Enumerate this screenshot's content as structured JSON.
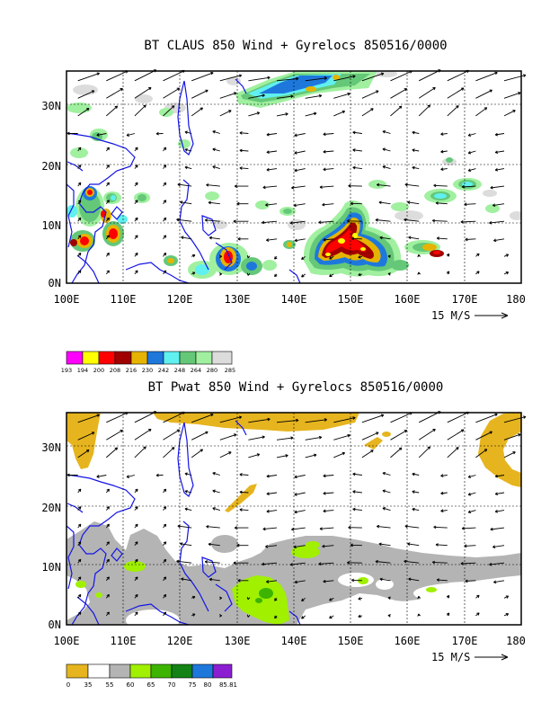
{
  "chart_data": [
    {
      "type": "heatmap",
      "title": "BT CLAUS 850 Wind + Gyrelocs 850516/0000",
      "variable": "cloud brightness temperature (shaded) + 850 wind vectors",
      "x_ticks": [
        "100E",
        "110E",
        "120E",
        "130E",
        "140E",
        "150E",
        "160E",
        "170E",
        "180"
      ],
      "y_ticks": [
        "0N",
        "10N",
        "20N",
        "30N"
      ],
      "x_range_deg_e": [
        100,
        180
      ],
      "y_range_deg_n": [
        0,
        35
      ],
      "grid": "dashed at 10-degree lines",
      "vector_reference": "15 M/S",
      "colorbar": {
        "labels": [
          "193",
          "194",
          "200",
          "208",
          "216",
          "230",
          "242",
          "248",
          "264",
          "280",
          "285"
        ],
        "colors": [
          "#ff00ff",
          "#ffff00",
          "#ff0000",
          "#a00000",
          "#e6b400",
          "#1e78dc",
          "#60f0f0",
          "#64c878",
          "#a0f0a0",
          "#dcdcdc"
        ]
      },
      "features": [
        {
          "name": "equatorial convective cluster near 147-158E",
          "lon_range": [
            143,
            158
          ],
          "lat_range": [
            1,
            13
          ],
          "min_value": 193
        },
        {
          "name": "convection near 127-130E",
          "lon_range": [
            125,
            132
          ],
          "lat_range": [
            1,
            6
          ],
          "min_value": 200
        },
        {
          "name": "Indochina convection",
          "lon_range": [
            102,
            112
          ],
          "lat_range": [
            4,
            16
          ],
          "min_value": 200
        },
        {
          "name": "northern cloud band",
          "lon_range": [
            130,
            152
          ],
          "lat_range": [
            30,
            35
          ],
          "min_value": 216
        }
      ]
    },
    {
      "type": "heatmap",
      "title": "BT Pwat 850 Wind + Gyrelocs 850516/0000",
      "variable": "precipitable water (shaded) + 850 wind vectors",
      "x_ticks": [
        "100E",
        "110E",
        "120E",
        "130E",
        "140E",
        "150E",
        "160E",
        "170E",
        "180"
      ],
      "y_ticks": [
        "0N",
        "10N",
        "20N",
        "30N"
      ],
      "x_range_deg_e": [
        100,
        180
      ],
      "y_range_deg_n": [
        0,
        35
      ],
      "grid": "dashed at 10-degree lines",
      "vector_reference": "15 M/S",
      "colorbar": {
        "labels": [
          "0",
          "35",
          "55",
          "60",
          "65",
          "70",
          "75",
          "80",
          "85.81"
        ],
        "colors": [
          "#e6b41e",
          "#ffffff",
          "#b4b4b4",
          "#a0f000",
          "#3cb400",
          "#148214",
          "#1e78dc",
          "#8c1ed2"
        ]
      },
      "features": [
        {
          "name": "moist equatorial band (55-60)",
          "lon_range": [
            100,
            180
          ],
          "lat_range": [
            0,
            15
          ]
        },
        {
          "name": "moist maximum near 135E",
          "lon_range": [
            130,
            140
          ],
          "lat_range": [
            0,
            7
          ],
          "range": "60-65"
        },
        {
          "name": "dry zones (0-35)",
          "regions": [
            "north 110-150E",
            "northeast 170-180E",
            "100-102E 27-35N"
          ]
        }
      ]
    }
  ],
  "panels": [
    {
      "title": "BT CLAUS 850 Wind + Gyrelocs 850516/0000",
      "vector_ref": "15 M/S"
    },
    {
      "title": "BT Pwat 850 Wind + Gyrelocs 850516/0000",
      "vector_ref": "15 M/S"
    }
  ]
}
